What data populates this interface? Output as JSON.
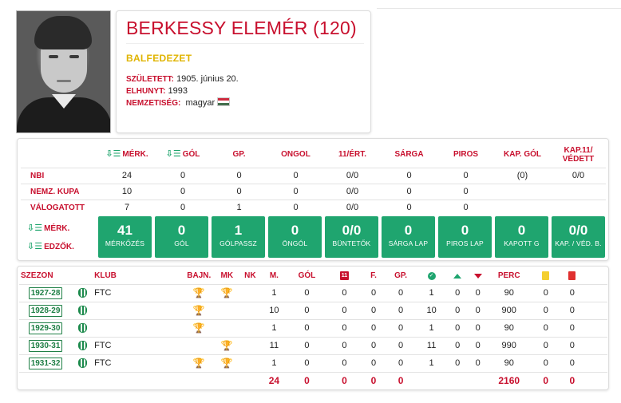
{
  "player": {
    "name": "BERKESSY ELEMÉR (120)",
    "position": "BALFEDEZET",
    "born_label": "SZÜLETETT:",
    "born_value": "1905. június 20.",
    "died_label": "ELHUNYT:",
    "died_value": "1993",
    "nationality_label": "NEMZETISÉG:",
    "nationality_value": "magyar",
    "flag_icon": "hungary-flag-icon"
  },
  "colors": {
    "accent_red": "#c8102e",
    "accent_green": "#1fa56f",
    "position_gold": "#e0b400"
  },
  "stats": {
    "headers": [
      "MÉRK.",
      "GÓL",
      "GP.",
      "ONGOL",
      "11/ÉRT.",
      "SÁRGA",
      "PIROS",
      "KAP. GÓL",
      "KAP.11/ VÉDETT"
    ],
    "rows": [
      {
        "label": "NBI",
        "cells": [
          "24",
          "0",
          "0",
          "0",
          "0/0",
          "0",
          "0",
          "(0)",
          "0/0"
        ]
      },
      {
        "label": "NEMZ. KUPA",
        "cells": [
          "10",
          "0",
          "0",
          "0",
          "0/0",
          "0",
          "0",
          "",
          ""
        ]
      },
      {
        "label": "VÁLOGATOTT",
        "cells": [
          "7",
          "0",
          "1",
          "0",
          "0/0",
          "0",
          "0",
          "",
          ""
        ]
      }
    ],
    "side_labels": [
      "MÉRK.",
      "EDZŐK."
    ],
    "boxes": [
      {
        "value": "41",
        "label": "MÉRKŐZÉS"
      },
      {
        "value": "0",
        "label": "GÓL"
      },
      {
        "value": "1",
        "label": "GÓLPASSZ"
      },
      {
        "value": "0",
        "label": "ÖNGÓL"
      },
      {
        "value": "0/0",
        "label": "BÜNTETŐK"
      },
      {
        "value": "0",
        "label": "SÁRGA LAP"
      },
      {
        "value": "0",
        "label": "PIROS LAP"
      },
      {
        "value": "0",
        "label": "KAPOTT G"
      },
      {
        "value": "0/0",
        "label": "KAP. / VÉD. B."
      }
    ]
  },
  "seasons": {
    "headers": {
      "season": "SZEZON",
      "club": "KLUB",
      "bajn": "BAJN.",
      "mk": "MK",
      "nk": "NK",
      "m": "M.",
      "gol": "GÓL",
      "penalty": "11",
      "f": "F.",
      "gp": "GP.",
      "perc": "PERC"
    },
    "rows": [
      {
        "season": "1927-28",
        "club": "FTC",
        "crest": true,
        "bajn": "gold",
        "mk": "gold",
        "m": "1",
        "gol": "0",
        "pen": "0",
        "f": "0",
        "gp": "0",
        "start": "1",
        "in": "0",
        "out": "0",
        "perc": "90",
        "yellow": "0",
        "red": "0"
      },
      {
        "season": "1928-29",
        "club": "",
        "crest": false,
        "bajn": "gray",
        "mk": "",
        "m": "10",
        "gol": "0",
        "pen": "0",
        "f": "0",
        "gp": "0",
        "start": "10",
        "in": "0",
        "out": "0",
        "perc": "900",
        "yellow": "0",
        "red": "0"
      },
      {
        "season": "1929-30",
        "club": "",
        "crest": false,
        "bajn": "gray",
        "mk": "",
        "m": "1",
        "gol": "0",
        "pen": "0",
        "f": "0",
        "gp": "0",
        "start": "1",
        "in": "0",
        "out": "0",
        "perc": "90",
        "yellow": "0",
        "red": "0"
      },
      {
        "season": "1930-31",
        "club": "FTC",
        "crest": true,
        "bajn": "",
        "mk": "gray",
        "m": "11",
        "gol": "0",
        "pen": "0",
        "f": "0",
        "gp": "0",
        "start": "11",
        "in": "0",
        "out": "0",
        "perc": "990",
        "yellow": "0",
        "red": "0"
      },
      {
        "season": "1931-32",
        "club": "FTC",
        "crest": true,
        "bajn": "gold",
        "mk": "gray",
        "m": "1",
        "gol": "0",
        "pen": "0",
        "f": "0",
        "gp": "0",
        "start": "1",
        "in": "0",
        "out": "0",
        "perc": "90",
        "yellow": "0",
        "red": "0"
      }
    ],
    "totals": {
      "m": "24",
      "gol": "0",
      "pen": "0",
      "f": "0",
      "gp": "0",
      "perc": "2160",
      "yellow": "0",
      "red": "0"
    }
  }
}
